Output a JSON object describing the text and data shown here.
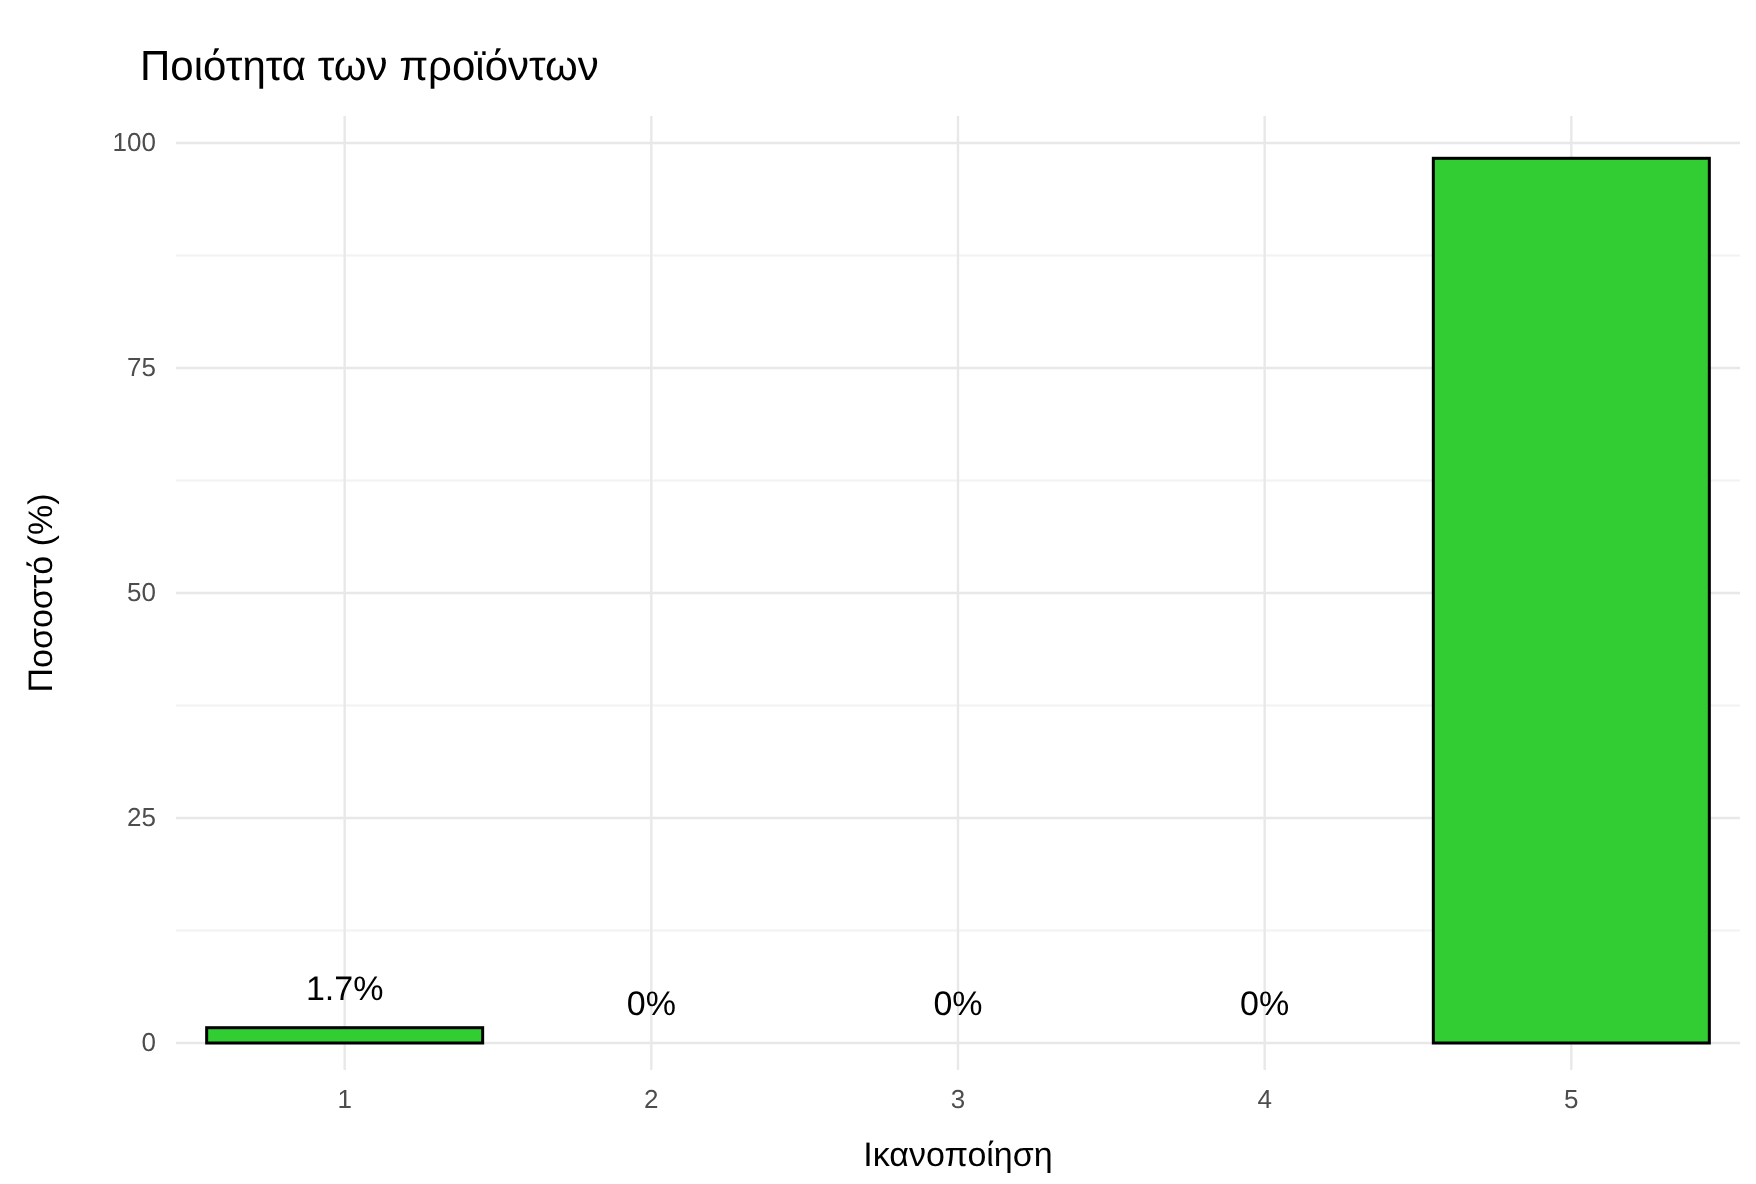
{
  "chart_data": {
    "type": "bar",
    "title": "Ποιότητα των προϊόντων",
    "xlabel": "Ικανοποίηση",
    "ylabel": "Ποσοστό (%)",
    "categories": [
      "1",
      "2",
      "3",
      "4",
      "5"
    ],
    "values": [
      1.7,
      0,
      0,
      0,
      98.3
    ],
    "value_labels": [
      "1.7%",
      "0%",
      "0%",
      "0%",
      null
    ],
    "color": "#32cd32",
    "ylim": [
      -3,
      103
    ],
    "yticks": [
      0,
      25,
      50,
      75,
      100
    ],
    "grid": true
  }
}
